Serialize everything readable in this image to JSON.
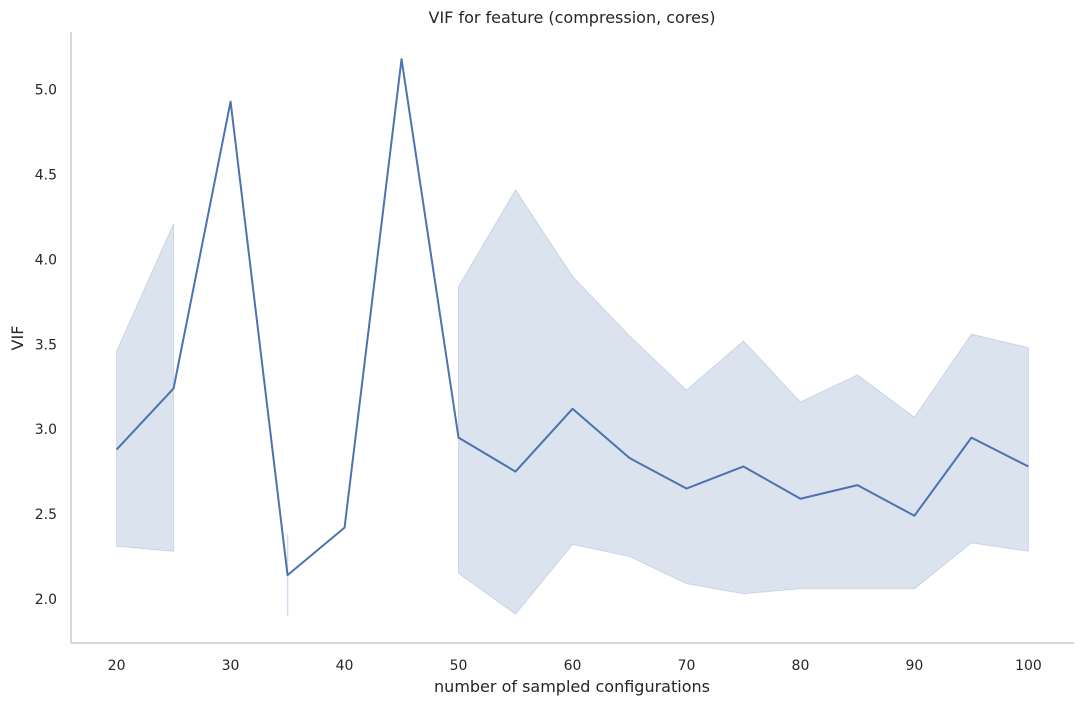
{
  "chart_data": {
    "type": "line",
    "title": "VIF for feature (compression, cores)",
    "xlabel": "number of sampled configurations",
    "ylabel": "VIF",
    "xlim": [
      16,
      104
    ],
    "ylim": [
      1.74,
      5.34
    ],
    "grid": false,
    "legend": "none",
    "x_ticks": [
      20,
      30,
      40,
      50,
      60,
      70,
      80,
      90,
      100
    ],
    "y_ticks": [
      "2.0",
      "2.5",
      "3.0",
      "3.5",
      "4.0",
      "4.5",
      "5.0"
    ],
    "series": [
      {
        "color": "#4c72b0",
        "x": [
          20,
          25,
          30,
          35,
          40,
          45,
          50,
          55,
          60,
          65,
          70,
          75,
          80,
          85,
          90,
          95,
          100
        ],
        "values": [
          2.88,
          3.24,
          4.93,
          2.14,
          2.42,
          5.18,
          2.95,
          2.75,
          3.12,
          2.83,
          2.65,
          2.78,
          2.59,
          2.67,
          2.49,
          2.95,
          2.78
        ],
        "ci_segments": [
          {
            "x": [
              20,
              25
            ],
            "lower": [
              2.31,
              2.28
            ],
            "upper": [
              3.46,
              4.21
            ]
          },
          {
            "x": [
              35
            ],
            "lower": [
              1.9
            ],
            "upper": [
              2.38
            ]
          },
          {
            "x": [
              50,
              55,
              60,
              65,
              70,
              75,
              80,
              85,
              90,
              95,
              100
            ],
            "lower": [
              2.15,
              1.91,
              2.32,
              2.25,
              2.09,
              2.03,
              2.06,
              2.06,
              2.06,
              2.33,
              2.28
            ],
            "upper": [
              3.84,
              4.41,
              3.9,
              3.55,
              3.23,
              3.52,
              3.16,
              3.32,
              3.07,
              3.56,
              3.48
            ]
          }
        ]
      }
    ]
  }
}
